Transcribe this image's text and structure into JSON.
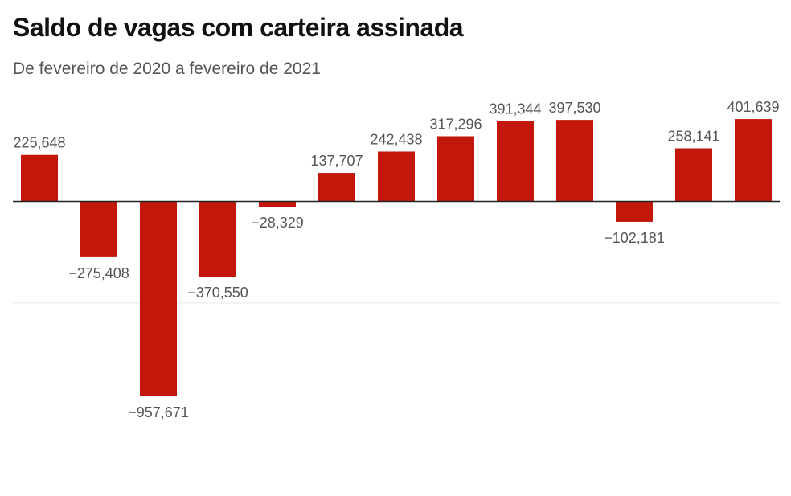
{
  "title": "Saldo de vagas com carteira assinada",
  "subtitle": "De fevereiro de 2020 a fevereiro de 2021",
  "colors": {
    "bar": "#c4170c",
    "gridline": "#e6e6e6",
    "zero_line": "#222222",
    "label": "#555555"
  },
  "chart_data": {
    "type": "bar",
    "title": "Saldo de vagas com carteira assinada",
    "subtitle": "De fevereiro de 2020 a fevereiro de 2021",
    "values": [
      225648,
      -275408,
      -957671,
      -370550,
      -28329,
      137707,
      242438,
      317296,
      391344,
      397530,
      -102181,
      258141,
      401639
    ],
    "value_labels": [
      "225,648",
      "−275,408",
      "−957,671",
      "−370,550",
      "−28,329",
      "137,707",
      "242,438",
      "317,296",
      "391,344",
      "397,530",
      "−102,181",
      "258,141",
      "401,639"
    ],
    "ylim": [
      -1000000,
      500000
    ],
    "gridlines": [
      0,
      -500000
    ],
    "grid": true,
    "legend": "none"
  }
}
